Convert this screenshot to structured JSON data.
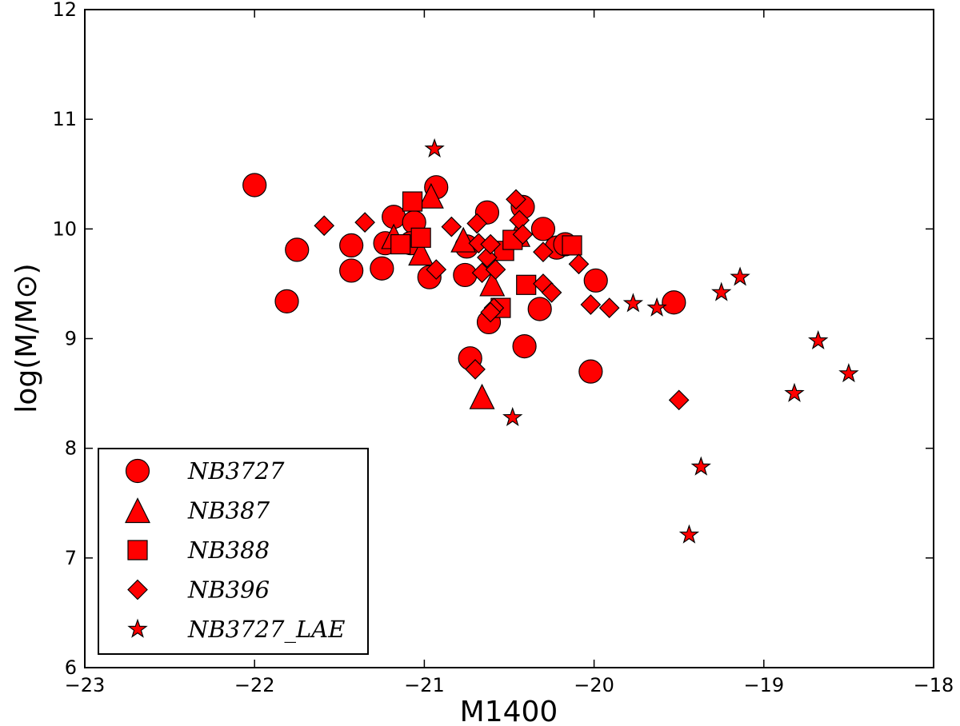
{
  "chart_data": {
    "type": "scatter",
    "xlabel": "M1400",
    "ylabel": "log(M/M⊙)",
    "xlim": [
      -23,
      -18
    ],
    "ylim": [
      6,
      12
    ],
    "x_ticks": [
      "−23",
      "−22",
      "−21",
      "−20",
      "−19",
      "−18"
    ],
    "y_ticks": [
      "6",
      "7",
      "8",
      "9",
      "10",
      "11",
      "12"
    ],
    "grid": false,
    "legend_position": "lower-left",
    "marker_color": "#ff0000",
    "series": [
      {
        "name": "NB3727",
        "marker": "circle",
        "points": [
          [
            -22.0,
            10.4
          ],
          [
            -21.81,
            9.34
          ],
          [
            -21.75,
            9.81
          ],
          [
            -21.43,
            9.85
          ],
          [
            -21.43,
            9.62
          ],
          [
            -21.25,
            9.64
          ],
          [
            -21.18,
            10.11
          ],
          [
            -21.23,
            9.87
          ],
          [
            -21.06,
            10.06
          ],
          [
            -21.08,
            9.87
          ],
          [
            -20.97,
            9.56
          ],
          [
            -20.93,
            10.38
          ],
          [
            -20.75,
            9.84
          ],
          [
            -20.76,
            9.58
          ],
          [
            -20.73,
            8.82
          ],
          [
            -20.63,
            10.15
          ],
          [
            -20.62,
            9.15
          ],
          [
            -20.42,
            10.2
          ],
          [
            -20.41,
            8.93
          ],
          [
            -20.32,
            9.27
          ],
          [
            -20.3,
            10.0
          ],
          [
            -20.22,
            9.83
          ],
          [
            -20.17,
            9.86
          ],
          [
            -19.99,
            9.53
          ],
          [
            -20.02,
            8.7
          ],
          [
            -19.53,
            9.33
          ]
        ]
      },
      {
        "name": "NB387",
        "marker": "triangle",
        "points": [
          [
            -21.18,
            9.93
          ],
          [
            -21.02,
            9.78
          ],
          [
            -20.96,
            10.3
          ],
          [
            -20.77,
            9.9
          ],
          [
            -20.6,
            9.5
          ],
          [
            -20.66,
            8.47
          ],
          [
            -20.45,
            9.95
          ]
        ]
      },
      {
        "name": "NB388",
        "marker": "square",
        "points": [
          [
            -21.07,
            10.25
          ],
          [
            -21.14,
            9.86
          ],
          [
            -21.02,
            9.92
          ],
          [
            -20.53,
            9.8
          ],
          [
            -20.55,
            9.28
          ],
          [
            -20.4,
            9.49
          ],
          [
            -20.13,
            9.85
          ],
          [
            -20.48,
            9.9
          ]
        ]
      },
      {
        "name": "NB396",
        "marker": "diamond",
        "points": [
          [
            -21.59,
            10.03
          ],
          [
            -21.35,
            10.06
          ],
          [
            -20.93,
            9.63
          ],
          [
            -20.84,
            10.02
          ],
          [
            -20.69,
            10.05
          ],
          [
            -20.68,
            9.87
          ],
          [
            -20.66,
            9.6
          ],
          [
            -20.63,
            9.74
          ],
          [
            -20.61,
            9.86
          ],
          [
            -20.58,
            9.63
          ],
          [
            -20.59,
            9.28
          ],
          [
            -20.61,
            9.24
          ],
          [
            -20.7,
            8.72
          ],
          [
            -20.46,
            10.27
          ],
          [
            -20.44,
            10.08
          ],
          [
            -20.42,
            9.95
          ],
          [
            -20.3,
            9.79
          ],
          [
            -20.3,
            9.5
          ],
          [
            -20.25,
            9.42
          ],
          [
            -20.09,
            9.68
          ],
          [
            -20.02,
            9.31
          ],
          [
            -19.91,
            9.28
          ],
          [
            -19.5,
            8.44
          ]
        ]
      },
      {
        "name": "NB3727_LAE",
        "marker": "star",
        "points": [
          [
            -20.94,
            10.73
          ],
          [
            -20.48,
            8.28
          ],
          [
            -19.77,
            9.32
          ],
          [
            -19.63,
            9.28
          ],
          [
            -19.25,
            9.42
          ],
          [
            -19.14,
            9.56
          ],
          [
            -19.37,
            7.83
          ],
          [
            -19.44,
            7.21
          ],
          [
            -18.82,
            8.5
          ],
          [
            -18.68,
            8.98
          ],
          [
            -18.5,
            8.68
          ]
        ]
      }
    ]
  }
}
